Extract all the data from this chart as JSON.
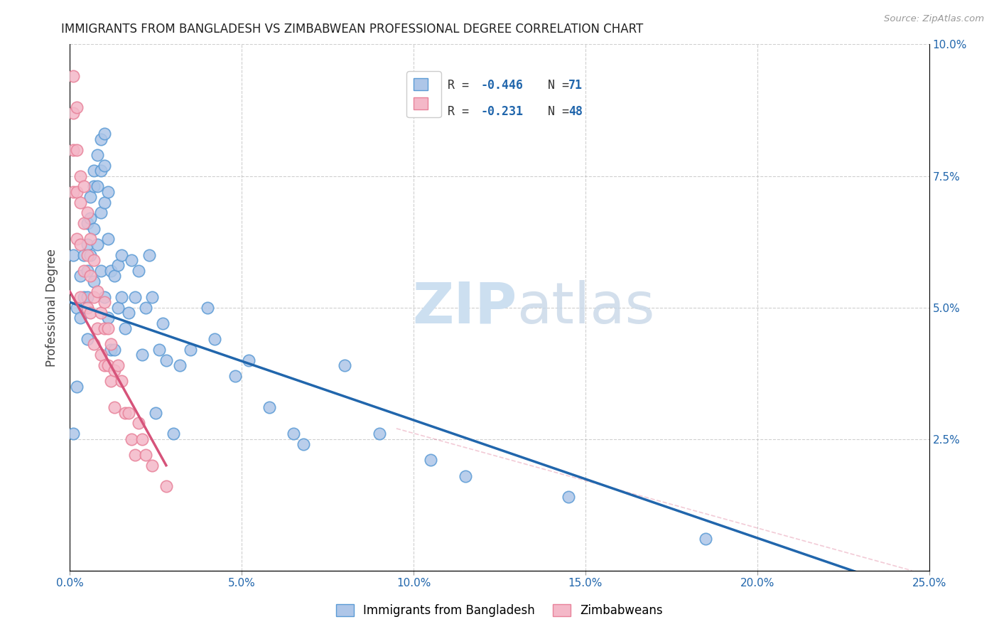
{
  "title": "IMMIGRANTS FROM BANGLADESH VS ZIMBABWEAN PROFESSIONAL DEGREE CORRELATION CHART",
  "source": "Source: ZipAtlas.com",
  "ylabel": "Professional Degree",
  "xlim": [
    0.0,
    0.25
  ],
  "ylim": [
    0.0,
    0.1
  ],
  "xticks": [
    0.0,
    0.05,
    0.1,
    0.15,
    0.2,
    0.25
  ],
  "xticklabels": [
    "0.0%",
    "5.0%",
    "10.0%",
    "15.0%",
    "20.0%",
    "25.0%"
  ],
  "yticks_right": [
    0.0,
    0.025,
    0.05,
    0.075,
    0.1
  ],
  "yticklabels_right": [
    "",
    "2.5%",
    "5.0%",
    "7.5%",
    "10.0%"
  ],
  "blue_R": -0.446,
  "blue_N": 71,
  "pink_R": -0.231,
  "pink_N": 48,
  "blue_color": "#aec6e8",
  "pink_color": "#f4b8c8",
  "blue_edge_color": "#5b9bd5",
  "pink_edge_color": "#e8829a",
  "blue_line_color": "#2166ac",
  "pink_line_color": "#d6537a",
  "watermark_color": "#ccdff0",
  "legend_label_blue": "Immigrants from Bangladesh",
  "legend_label_pink": "Zimbabweans",
  "blue_line_x": [
    0.0,
    0.25
  ],
  "blue_line_y": [
    0.051,
    -0.005
  ],
  "pink_line_x": [
    0.0,
    0.028
  ],
  "pink_line_y": [
    0.053,
    0.02
  ],
  "dash_line_x": [
    0.095,
    0.245
  ],
  "dash_line_y": [
    0.027,
    0.0
  ],
  "blue_scatter_x": [
    0.001,
    0.001,
    0.002,
    0.002,
    0.003,
    0.003,
    0.004,
    0.004,
    0.005,
    0.005,
    0.005,
    0.005,
    0.005,
    0.006,
    0.006,
    0.006,
    0.007,
    0.007,
    0.007,
    0.007,
    0.008,
    0.008,
    0.008,
    0.009,
    0.009,
    0.009,
    0.009,
    0.01,
    0.01,
    0.01,
    0.01,
    0.011,
    0.011,
    0.011,
    0.012,
    0.012,
    0.013,
    0.013,
    0.014,
    0.014,
    0.015,
    0.015,
    0.016,
    0.017,
    0.018,
    0.019,
    0.02,
    0.021,
    0.022,
    0.023,
    0.024,
    0.025,
    0.026,
    0.027,
    0.028,
    0.03,
    0.032,
    0.035,
    0.04,
    0.042,
    0.048,
    0.052,
    0.058,
    0.065,
    0.068,
    0.08,
    0.09,
    0.105,
    0.115,
    0.145,
    0.185
  ],
  "blue_scatter_y": [
    0.026,
    0.06,
    0.05,
    0.035,
    0.056,
    0.048,
    0.06,
    0.052,
    0.066,
    0.062,
    0.057,
    0.052,
    0.044,
    0.071,
    0.067,
    0.06,
    0.076,
    0.073,
    0.065,
    0.055,
    0.079,
    0.073,
    0.062,
    0.082,
    0.076,
    0.068,
    0.057,
    0.083,
    0.077,
    0.07,
    0.052,
    0.072,
    0.063,
    0.048,
    0.057,
    0.042,
    0.056,
    0.042,
    0.058,
    0.05,
    0.06,
    0.052,
    0.046,
    0.049,
    0.059,
    0.052,
    0.057,
    0.041,
    0.05,
    0.06,
    0.052,
    0.03,
    0.042,
    0.047,
    0.04,
    0.026,
    0.039,
    0.042,
    0.05,
    0.044,
    0.037,
    0.04,
    0.031,
    0.026,
    0.024,
    0.039,
    0.026,
    0.021,
    0.018,
    0.014,
    0.006
  ],
  "pink_scatter_x": [
    0.001,
    0.001,
    0.001,
    0.001,
    0.002,
    0.002,
    0.002,
    0.002,
    0.003,
    0.003,
    0.003,
    0.003,
    0.004,
    0.004,
    0.004,
    0.005,
    0.005,
    0.005,
    0.006,
    0.006,
    0.006,
    0.007,
    0.007,
    0.007,
    0.008,
    0.008,
    0.009,
    0.009,
    0.01,
    0.01,
    0.01,
    0.011,
    0.011,
    0.012,
    0.012,
    0.013,
    0.013,
    0.014,
    0.015,
    0.016,
    0.017,
    0.018,
    0.019,
    0.02,
    0.021,
    0.022,
    0.024,
    0.028
  ],
  "pink_scatter_y": [
    0.094,
    0.087,
    0.08,
    0.072,
    0.088,
    0.08,
    0.072,
    0.063,
    0.075,
    0.07,
    0.062,
    0.052,
    0.073,
    0.066,
    0.057,
    0.068,
    0.06,
    0.05,
    0.063,
    0.056,
    0.049,
    0.059,
    0.052,
    0.043,
    0.053,
    0.046,
    0.049,
    0.041,
    0.051,
    0.046,
    0.039,
    0.046,
    0.039,
    0.043,
    0.036,
    0.038,
    0.031,
    0.039,
    0.036,
    0.03,
    0.03,
    0.025,
    0.022,
    0.028,
    0.025,
    0.022,
    0.02,
    0.016
  ]
}
